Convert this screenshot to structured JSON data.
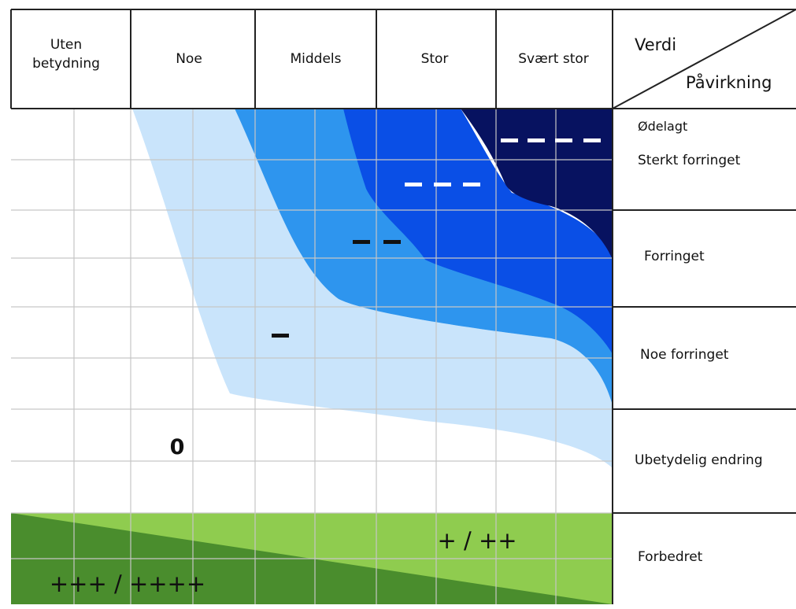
{
  "header": {
    "columns": [
      "Uten\nbetydning",
      "Noe",
      "Middels",
      "Stor",
      "Svært stor"
    ],
    "corner_top": "Verdi",
    "corner_bottom": "Påvirkning"
  },
  "rows": [
    {
      "lines": [
        "Ødelagt",
        "Sterkt forringet"
      ]
    },
    {
      "lines": [
        "Forringet"
      ]
    },
    {
      "lines": [
        "Noe forringet"
      ]
    },
    {
      "lines": [
        "Ubetydelig endring"
      ]
    },
    {
      "lines": [
        "Forbedret"
      ]
    }
  ],
  "zone_labels": {
    "zero": "0",
    "plus_small": "+ / ++",
    "plus_large": "+++ / ++++"
  },
  "colors": {
    "very_light_blue": "#c9e4fb",
    "light_blue": "#2e95ee",
    "medium_blue": "#0a4fe6",
    "dark_navy": "#071260",
    "light_green": "#8fcc4f",
    "dark_green": "#4a8d2d",
    "grid": "#c6c6c6",
    "border": "#222222"
  }
}
